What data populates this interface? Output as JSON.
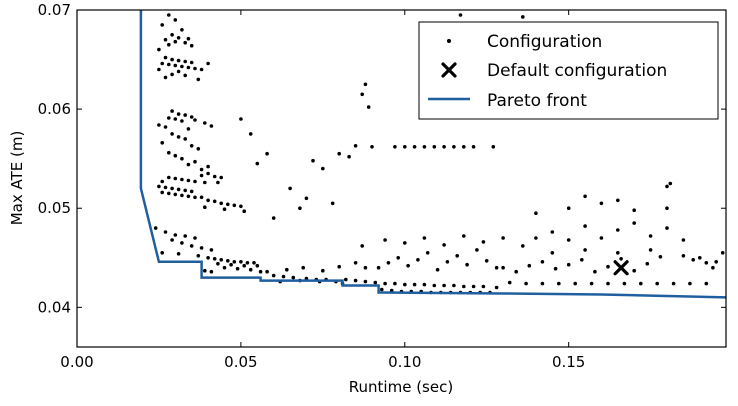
{
  "chart_data": {
    "type": "scatter",
    "title": "",
    "xlabel": "Runtime (sec)",
    "ylabel": "Max ATE (m)",
    "xlim": [
      0.0,
      0.198
    ],
    "ylim": [
      0.036,
      0.07
    ],
    "x_ticks": [
      0.0,
      0.05,
      0.1,
      0.15
    ],
    "x_tick_labels": [
      "0.00",
      "0.05",
      "0.10",
      "0.15"
    ],
    "y_ticks": [
      0.04,
      0.05,
      0.06,
      0.07
    ],
    "y_tick_labels": [
      "0.04",
      "0.05",
      "0.06",
      "0.07"
    ],
    "grid": false,
    "legend": {
      "placement": "top-right",
      "entries": [
        "Configuration",
        "Default configuration",
        "Pareto front"
      ]
    },
    "colors": {
      "configuration": "#000000",
      "default": "#000000",
      "pareto": "#1f5fa0"
    },
    "series": [
      {
        "name": "Configuration",
        "marker": "dot",
        "points": [
          [
            0.028,
            0.0695
          ],
          [
            0.03,
            0.069
          ],
          [
            0.026,
            0.0685
          ],
          [
            0.032,
            0.068
          ],
          [
            0.029,
            0.0675
          ],
          [
            0.031,
            0.0672
          ],
          [
            0.034,
            0.0671
          ],
          [
            0.027,
            0.067
          ],
          [
            0.03,
            0.0668
          ],
          [
            0.033,
            0.0667
          ],
          [
            0.028,
            0.0665
          ],
          [
            0.035,
            0.0664
          ],
          [
            0.025,
            0.066
          ],
          [
            0.027,
            0.0652
          ],
          [
            0.029,
            0.065
          ],
          [
            0.031,
            0.0649
          ],
          [
            0.033,
            0.0648
          ],
          [
            0.035,
            0.0647
          ],
          [
            0.026,
            0.0646
          ],
          [
            0.028,
            0.0645
          ],
          [
            0.03,
            0.0644
          ],
          [
            0.032,
            0.0643
          ],
          [
            0.034,
            0.0642
          ],
          [
            0.036,
            0.0641
          ],
          [
            0.038,
            0.064
          ],
          [
            0.04,
            0.0646
          ],
          [
            0.025,
            0.064
          ],
          [
            0.031,
            0.0638
          ],
          [
            0.029,
            0.0635
          ],
          [
            0.033,
            0.0634
          ],
          [
            0.027,
            0.0632
          ],
          [
            0.037,
            0.063
          ],
          [
            0.029,
            0.0598
          ],
          [
            0.031,
            0.0595
          ],
          [
            0.033,
            0.0594
          ],
          [
            0.035,
            0.0592
          ],
          [
            0.028,
            0.0591
          ],
          [
            0.03,
            0.059
          ],
          [
            0.036,
            0.0589
          ],
          [
            0.032,
            0.0588
          ],
          [
            0.039,
            0.0586
          ],
          [
            0.025,
            0.0584
          ],
          [
            0.041,
            0.0583
          ],
          [
            0.027,
            0.0582
          ],
          [
            0.034,
            0.058
          ],
          [
            0.029,
            0.0575
          ],
          [
            0.031,
            0.0572
          ],
          [
            0.033,
            0.057
          ],
          [
            0.026,
            0.0566
          ],
          [
            0.035,
            0.0563
          ],
          [
            0.037,
            0.056
          ],
          [
            0.028,
            0.0556
          ],
          [
            0.03,
            0.0553
          ],
          [
            0.032,
            0.055
          ],
          [
            0.036,
            0.0547
          ],
          [
            0.034,
            0.0544
          ],
          [
            0.04,
            0.0542
          ],
          [
            0.038,
            0.0539
          ],
          [
            0.028,
            0.0531
          ],
          [
            0.03,
            0.053
          ],
          [
            0.032,
            0.0529
          ],
          [
            0.034,
            0.0528
          ],
          [
            0.026,
            0.0527
          ],
          [
            0.036,
            0.0527
          ],
          [
            0.038,
            0.0533
          ],
          [
            0.04,
            0.0535
          ],
          [
            0.042,
            0.0532
          ],
          [
            0.039,
            0.0526
          ],
          [
            0.044,
            0.0531
          ],
          [
            0.043,
            0.0526
          ],
          [
            0.025,
            0.0522
          ],
          [
            0.027,
            0.0521
          ],
          [
            0.029,
            0.052
          ],
          [
            0.031,
            0.0519
          ],
          [
            0.033,
            0.0518
          ],
          [
            0.035,
            0.0517
          ],
          [
            0.026,
            0.0516
          ],
          [
            0.028,
            0.0515
          ],
          [
            0.03,
            0.0514
          ],
          [
            0.032,
            0.0513
          ],
          [
            0.034,
            0.0512
          ],
          [
            0.036,
            0.0511
          ],
          [
            0.038,
            0.0511
          ],
          [
            0.04,
            0.0508
          ],
          [
            0.042,
            0.0507
          ],
          [
            0.044,
            0.0505
          ],
          [
            0.046,
            0.0504
          ],
          [
            0.048,
            0.0503
          ],
          [
            0.05,
            0.0502
          ],
          [
            0.039,
            0.0501
          ],
          [
            0.045,
            0.0499
          ],
          [
            0.051,
            0.0497
          ],
          [
            0.024,
            0.048
          ],
          [
            0.027,
            0.0476
          ],
          [
            0.03,
            0.0473
          ],
          [
            0.033,
            0.0472
          ],
          [
            0.036,
            0.047
          ],
          [
            0.029,
            0.0468
          ],
          [
            0.032,
            0.0465
          ],
          [
            0.035,
            0.0462
          ],
          [
            0.038,
            0.046
          ],
          [
            0.041,
            0.0458
          ],
          [
            0.026,
            0.0455
          ],
          [
            0.031,
            0.0454
          ],
          [
            0.037,
            0.0452
          ],
          [
            0.04,
            0.045
          ],
          [
            0.042,
            0.0449
          ],
          [
            0.044,
            0.0448
          ],
          [
            0.046,
            0.0447
          ],
          [
            0.048,
            0.0446
          ],
          [
            0.05,
            0.0446
          ],
          [
            0.052,
            0.0445
          ],
          [
            0.054,
            0.0445
          ],
          [
            0.043,
            0.0444
          ],
          [
            0.047,
            0.0443
          ],
          [
            0.051,
            0.0442
          ],
          [
            0.055,
            0.0442
          ],
          [
            0.045,
            0.044
          ],
          [
            0.049,
            0.0439
          ],
          [
            0.053,
            0.0438
          ],
          [
            0.039,
            0.0437
          ],
          [
            0.041,
            0.0436
          ],
          [
            0.056,
            0.0436
          ],
          [
            0.06,
            0.0432
          ],
          [
            0.063,
            0.0431
          ],
          [
            0.066,
            0.043
          ],
          [
            0.07,
            0.0429
          ],
          [
            0.073,
            0.0428
          ],
          [
            0.076,
            0.0428
          ],
          [
            0.062,
            0.0426
          ],
          [
            0.068,
            0.0427
          ],
          [
            0.074,
            0.0426
          ],
          [
            0.079,
            0.0426
          ],
          [
            0.081,
            0.0424
          ],
          [
            0.058,
            0.0436
          ],
          [
            0.064,
            0.0438
          ],
          [
            0.069,
            0.044
          ],
          [
            0.075,
            0.0437
          ],
          [
            0.08,
            0.0441
          ],
          [
            0.085,
            0.0445
          ],
          [
            0.088,
            0.044
          ],
          [
            0.082,
            0.0428
          ],
          [
            0.085,
            0.0427
          ],
          [
            0.088,
            0.0426
          ],
          [
            0.091,
            0.0425
          ],
          [
            0.094,
            0.0424
          ],
          [
            0.097,
            0.0424
          ],
          [
            0.1,
            0.0423
          ],
          [
            0.103,
            0.0423
          ],
          [
            0.106,
            0.0423
          ],
          [
            0.109,
            0.0422
          ],
          [
            0.112,
            0.0422
          ],
          [
            0.115,
            0.0422
          ],
          [
            0.118,
            0.0421
          ],
          [
            0.121,
            0.0421
          ],
          [
            0.124,
            0.0421
          ],
          [
            0.128,
            0.042
          ],
          [
            0.093,
            0.0418
          ],
          [
            0.096,
            0.0417
          ],
          [
            0.099,
            0.0416
          ],
          [
            0.102,
            0.0416
          ],
          [
            0.105,
            0.0416
          ],
          [
            0.108,
            0.0415
          ],
          [
            0.111,
            0.0415
          ],
          [
            0.114,
            0.0415
          ],
          [
            0.117,
            0.0415
          ],
          [
            0.12,
            0.0415
          ],
          [
            0.123,
            0.0415
          ],
          [
            0.126,
            0.0415
          ],
          [
            0.092,
            0.044
          ],
          [
            0.095,
            0.0445
          ],
          [
            0.098,
            0.045
          ],
          [
            0.101,
            0.0442
          ],
          [
            0.104,
            0.0448
          ],
          [
            0.107,
            0.0455
          ],
          [
            0.11,
            0.0438
          ],
          [
            0.113,
            0.0446
          ],
          [
            0.116,
            0.0452
          ],
          [
            0.119,
            0.0443
          ],
          [
            0.122,
            0.0458
          ],
          [
            0.125,
            0.0447
          ],
          [
            0.128,
            0.044
          ],
          [
            0.087,
            0.0462
          ],
          [
            0.094,
            0.0468
          ],
          [
            0.1,
            0.0465
          ],
          [
            0.106,
            0.047
          ],
          [
            0.112,
            0.0463
          ],
          [
            0.118,
            0.0472
          ],
          [
            0.124,
            0.0466
          ],
          [
            0.13,
            0.047
          ],
          [
            0.136,
            0.0462
          ],
          [
            0.097,
            0.0562
          ],
          [
            0.1,
            0.0562
          ],
          [
            0.103,
            0.0562
          ],
          [
            0.106,
            0.0562
          ],
          [
            0.109,
            0.0562
          ],
          [
            0.112,
            0.0562
          ],
          [
            0.115,
            0.0562
          ],
          [
            0.118,
            0.0562
          ],
          [
            0.121,
            0.0562
          ],
          [
            0.127,
            0.0562
          ],
          [
            0.09,
            0.0562
          ],
          [
            0.085,
            0.0563
          ],
          [
            0.08,
            0.0555
          ],
          [
            0.083,
            0.0552
          ],
          [
            0.117,
            0.0695
          ],
          [
            0.136,
            0.0693
          ],
          [
            0.087,
            0.0615
          ],
          [
            0.088,
            0.0625
          ],
          [
            0.089,
            0.0602
          ],
          [
            0.075,
            0.054
          ],
          [
            0.072,
            0.0548
          ],
          [
            0.078,
            0.0505
          ],
          [
            0.068,
            0.05
          ],
          [
            0.06,
            0.049
          ],
          [
            0.065,
            0.052
          ],
          [
            0.07,
            0.051
          ],
          [
            0.055,
            0.0545
          ],
          [
            0.058,
            0.0555
          ],
          [
            0.05,
            0.059
          ],
          [
            0.053,
            0.0575
          ],
          [
            0.13,
            0.044
          ],
          [
            0.134,
            0.0436
          ],
          [
            0.138,
            0.0442
          ],
          [
            0.142,
            0.0446
          ],
          [
            0.146,
            0.0439
          ],
          [
            0.15,
            0.0443
          ],
          [
            0.154,
            0.0448
          ],
          [
            0.158,
            0.0436
          ],
          [
            0.162,
            0.0441
          ],
          [
            0.166,
            0.0449
          ],
          [
            0.17,
            0.0437
          ],
          [
            0.174,
            0.0444
          ],
          [
            0.178,
            0.0451
          ],
          [
            0.132,
            0.0425
          ],
          [
            0.137,
            0.0424
          ],
          [
            0.142,
            0.0424
          ],
          [
            0.147,
            0.0424
          ],
          [
            0.152,
            0.0424
          ],
          [
            0.157,
            0.0424
          ],
          [
            0.162,
            0.0424
          ],
          [
            0.167,
            0.0424
          ],
          [
            0.172,
            0.0424
          ],
          [
            0.177,
            0.0424
          ],
          [
            0.182,
            0.0424
          ],
          [
            0.187,
            0.0424
          ],
          [
            0.192,
            0.0424
          ],
          [
            0.14,
            0.047
          ],
          [
            0.145,
            0.0476
          ],
          [
            0.15,
            0.0468
          ],
          [
            0.155,
            0.0482
          ],
          [
            0.16,
            0.047
          ],
          [
            0.165,
            0.0478
          ],
          [
            0.17,
            0.0485
          ],
          [
            0.175,
            0.0472
          ],
          [
            0.18,
            0.048
          ],
          [
            0.185,
            0.0468
          ],
          [
            0.14,
            0.0495
          ],
          [
            0.15,
            0.05
          ],
          [
            0.16,
            0.0505
          ],
          [
            0.17,
            0.0498
          ],
          [
            0.18,
            0.05
          ],
          [
            0.155,
            0.0512
          ],
          [
            0.165,
            0.0508
          ],
          [
            0.145,
            0.0455
          ],
          [
            0.155,
            0.0458
          ],
          [
            0.165,
            0.0455
          ],
          [
            0.175,
            0.0458
          ],
          [
            0.185,
            0.0452
          ],
          [
            0.19,
            0.045
          ],
          [
            0.195,
            0.0446
          ],
          [
            0.197,
            0.0455
          ],
          [
            0.18,
            0.0522
          ],
          [
            0.181,
            0.0525
          ],
          [
            0.188,
            0.0448
          ],
          [
            0.192,
            0.0445
          ],
          [
            0.194,
            0.044
          ]
        ]
      },
      {
        "name": "Default configuration",
        "marker": "x",
        "points": [
          [
            0.166,
            0.044
          ]
        ]
      },
      {
        "name": "Pareto front",
        "marker": "line",
        "points": [
          [
            0.0195,
            0.07
          ],
          [
            0.0195,
            0.052
          ],
          [
            0.025,
            0.0446
          ],
          [
            0.038,
            0.0446
          ],
          [
            0.038,
            0.043
          ],
          [
            0.056,
            0.043
          ],
          [
            0.056,
            0.0427
          ],
          [
            0.081,
            0.0427
          ],
          [
            0.081,
            0.0422
          ],
          [
            0.092,
            0.0422
          ],
          [
            0.092,
            0.0415
          ],
          [
            0.13,
            0.0414
          ],
          [
            0.16,
            0.0413
          ],
          [
            0.198,
            0.041
          ]
        ]
      }
    ]
  }
}
